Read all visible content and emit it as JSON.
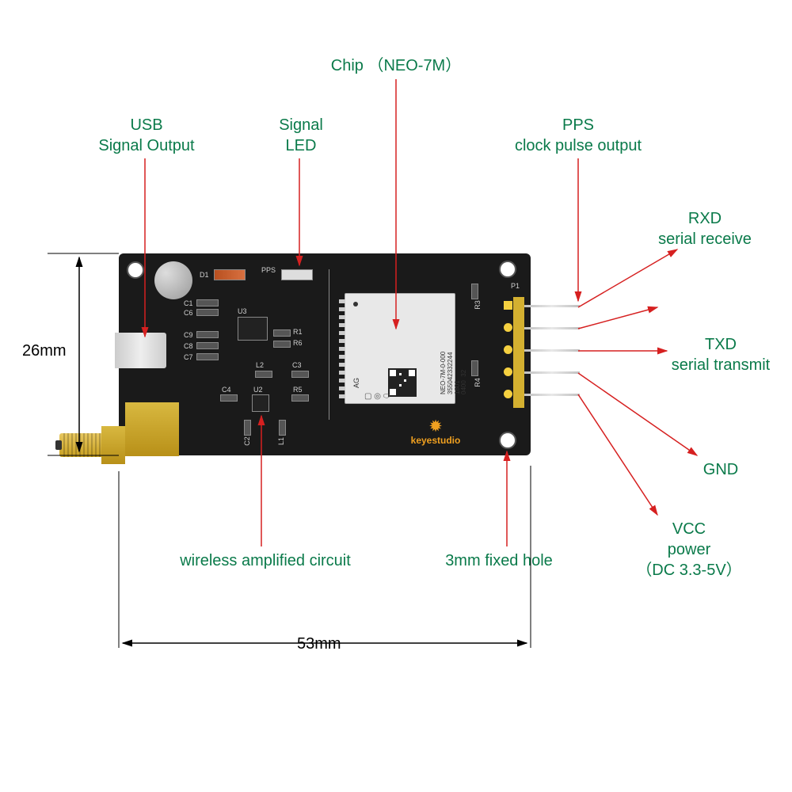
{
  "title_chip": "Chip  （NEO-7M）",
  "labels": {
    "usb": "USB<br>Signal Output",
    "signal_led": "Signal<br>LED",
    "pps": "PPS<br>clock pulse output",
    "rxd": "RXD<br>serial receive",
    "txd": "TXD<br>serial transmit",
    "gnd": "GND",
    "vcc": "VCC<br>power<br>（DC 3.3-5V）",
    "wireless": "wireless amplified  circuit",
    "fixed_hole": "3mm fixed hole"
  },
  "dimensions": {
    "height": "26mm",
    "width": "53mm"
  },
  "chip_text": "NEO-7M-0-000\n355042332244\n1801\n0400  32",
  "chip_ag": "AG",
  "silk": {
    "pps": "PPS",
    "d1": "D1",
    "c1": "C1",
    "c6": "C6",
    "c9": "C9",
    "c8": "C8",
    "c7": "C7",
    "u3": "U3",
    "r1": "R1",
    "r6": "R6",
    "l2": "L2",
    "c3": "C3",
    "c4": "C4",
    "u2": "U2",
    "r5": "R5",
    "c2": "C2",
    "l1": "L1",
    "r3": "R3",
    "r4": "R4",
    "p1": "P1"
  },
  "brand": "keyestudio",
  "colors": {
    "label": "#0a7a4a",
    "arrow": "#d62020",
    "dim": "#000000",
    "pcb": "#1a1a1a"
  },
  "arrow_stroke": 1.5
}
